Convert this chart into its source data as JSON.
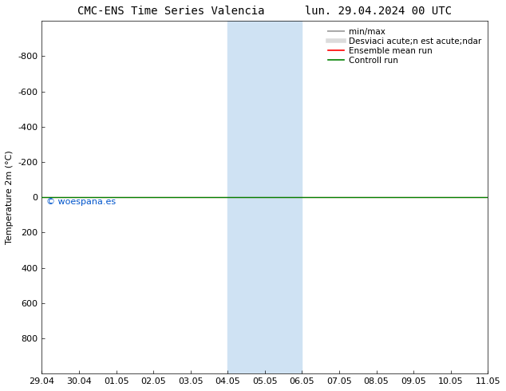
{
  "title_left": "CMC-ENS Time Series Valencia",
  "title_right": "lun. 29.04.2024 00 UTC",
  "ylabel": "Temperature 2m (°C)",
  "ylim_bottom": 1000,
  "ylim_top": -1000,
  "yticks": [
    800,
    600,
    400,
    200,
    0,
    -200,
    -400,
    -600,
    -800
  ],
  "xtick_labels": [
    "29.04",
    "30.04",
    "01.05",
    "02.05",
    "03.05",
    "04.05",
    "05.05",
    "06.05",
    "07.05",
    "08.05",
    "09.05",
    "10.05",
    "11.05"
  ],
  "xtick_positions": [
    0,
    1,
    2,
    3,
    4,
    5,
    6,
    7,
    8,
    9,
    10,
    11,
    12
  ],
  "shade_start": 5,
  "shade_end": 7,
  "shade_color": "#cfe2f3",
  "green_line_color": "#008000",
  "red_line_color": "#ff0000",
  "minmax_color": "#aaaaaa",
  "std_color": "#cccccc",
  "watermark": "© woespana.es",
  "watermark_color": "#0055cc",
  "background_color": "#ffffff",
  "legend_label_minmax": "min/max",
  "legend_label_std": "Desviaci acute;n est acute;ndar",
  "legend_label_ensemble": "Ensemble mean run",
  "legend_label_control": "Controll run",
  "title_fontsize": 10,
  "axis_fontsize": 8,
  "tick_fontsize": 8,
  "legend_fontsize": 7.5
}
